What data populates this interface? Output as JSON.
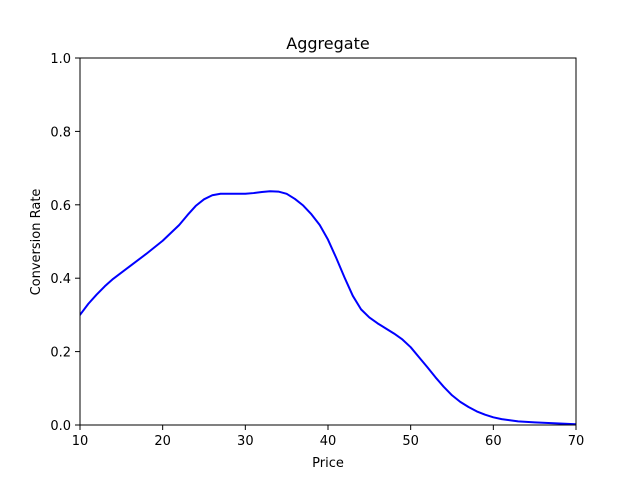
{
  "chart_data": {
    "type": "line",
    "title": "Aggregate",
    "xlabel": "Price",
    "ylabel": "Conversion Rate",
    "xlim": [
      10,
      70
    ],
    "ylim": [
      0.0,
      1.0
    ],
    "xticks": [
      10,
      20,
      30,
      40,
      50,
      60,
      70
    ],
    "xtick_labels": [
      "10",
      "20",
      "30",
      "40",
      "50",
      "60",
      "70"
    ],
    "yticks": [
      0.0,
      0.2,
      0.4,
      0.6,
      0.8,
      1.0
    ],
    "ytick_labels": [
      "0.0",
      "0.2",
      "0.4",
      "0.6",
      "0.8",
      "1.0"
    ],
    "grid": false,
    "series": [
      {
        "color": "#0000ff",
        "x": [
          10,
          11,
          12,
          13,
          14,
          16,
          18,
          20,
          22,
          23,
          24,
          25,
          26,
          27,
          28,
          30,
          31,
          32,
          33,
          34,
          35,
          36,
          37,
          38,
          39,
          40,
          41,
          42,
          43,
          44,
          45,
          46,
          47,
          48,
          49,
          50,
          51,
          52,
          53,
          54,
          55,
          56,
          57,
          58,
          59,
          60,
          61,
          62,
          63,
          65,
          67,
          69,
          70
        ],
        "y": [
          0.3,
          0.33,
          0.355,
          0.378,
          0.398,
          0.432,
          0.466,
          0.502,
          0.545,
          0.572,
          0.597,
          0.615,
          0.626,
          0.63,
          0.63,
          0.63,
          0.632,
          0.635,
          0.637,
          0.636,
          0.63,
          0.616,
          0.598,
          0.574,
          0.545,
          0.505,
          0.455,
          0.402,
          0.352,
          0.315,
          0.293,
          0.277,
          0.263,
          0.249,
          0.233,
          0.212,
          0.185,
          0.158,
          0.13,
          0.104,
          0.081,
          0.063,
          0.049,
          0.037,
          0.028,
          0.021,
          0.016,
          0.013,
          0.01,
          0.007,
          0.005,
          0.003,
          0.002
        ]
      }
    ]
  }
}
